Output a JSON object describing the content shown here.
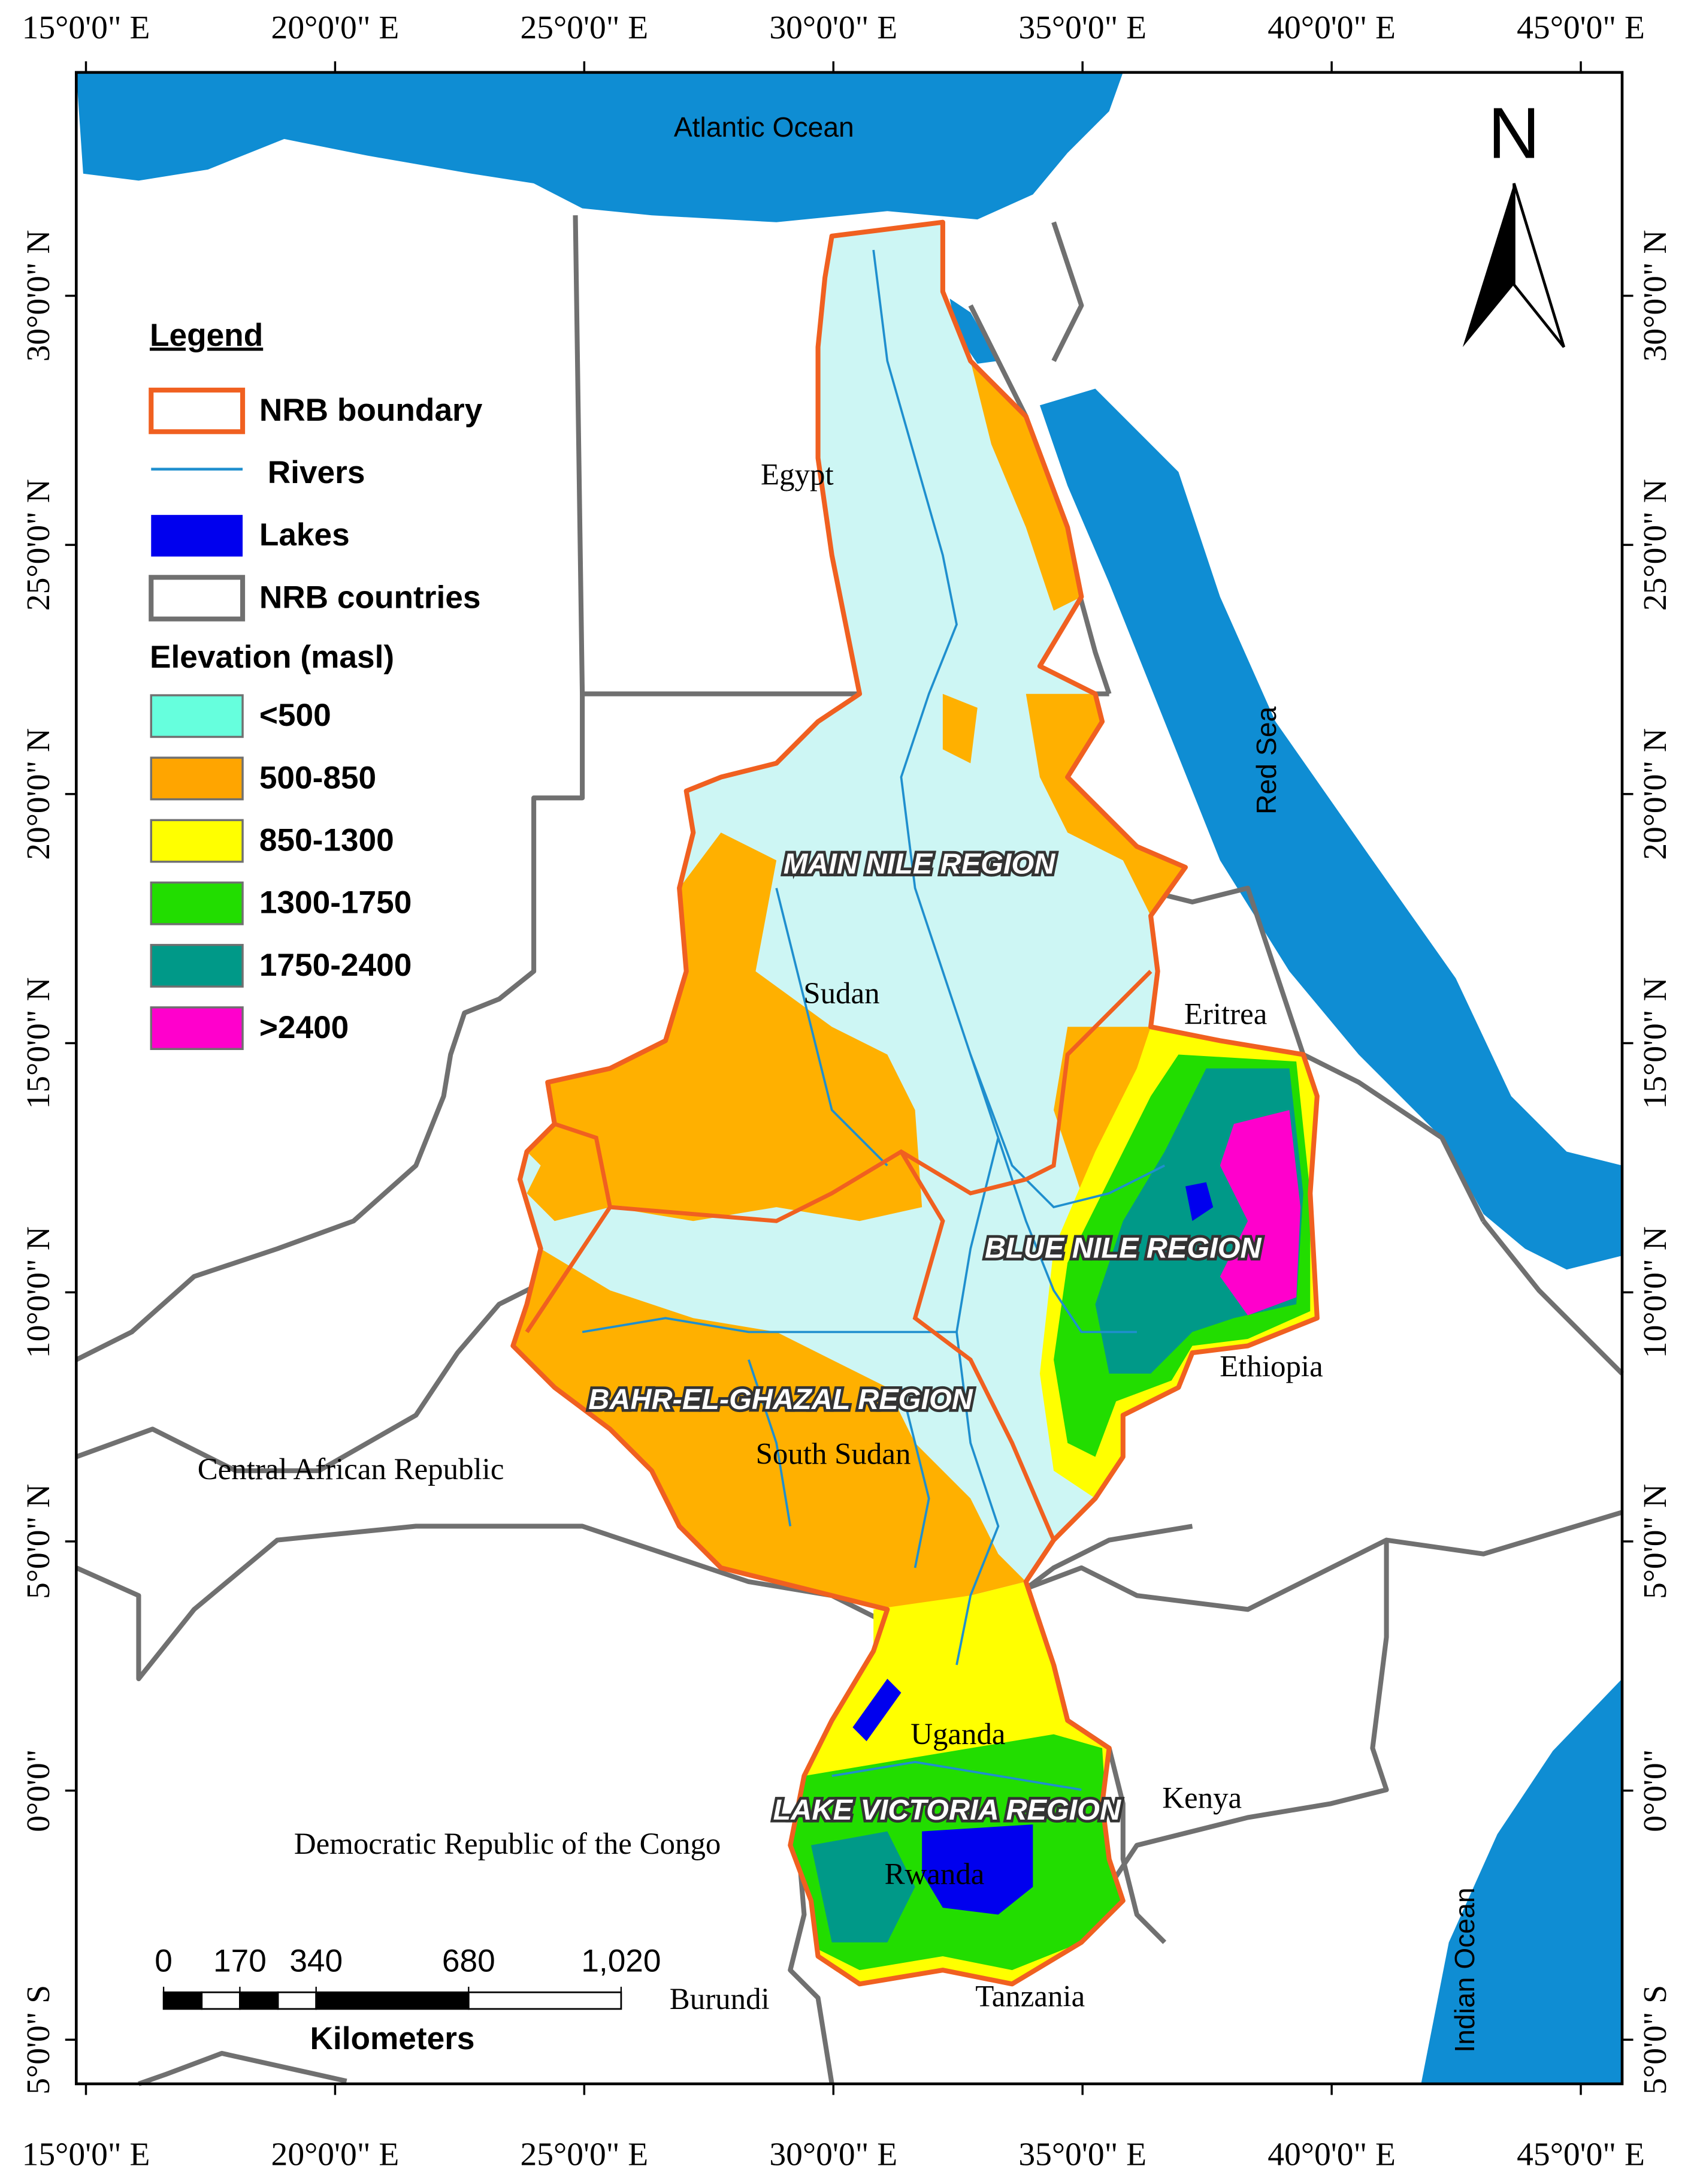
{
  "map": {
    "north_arrow": "N",
    "longitude_labels": [
      "15°0'0\" E",
      "20°0'0\" E",
      "25°0'0\" E",
      "30°0'0\" E",
      "35°0'0\" E",
      "40°0'0\" E",
      "45°0'0\" E"
    ],
    "latitude_labels": [
      "30°0'0\" N",
      "25°0'0\" N",
      "20°0'0\" N",
      "15°0'0\" N",
      "10°0'0\" N",
      "5°0'0\" N",
      "0°0'0\"",
      "5°0'0\" S"
    ],
    "water_labels": [
      "Atlantic Ocean",
      "Red Sea",
      "Indian Ocean"
    ],
    "country_labels": [
      "Egypt",
      "Sudan",
      "Eritrea",
      "Ethiopia",
      "South Sudan",
      "Central African Republic",
      "Uganda",
      "Kenya",
      "Democratic Republic of the Congo",
      "Rwanda",
      "Burundi",
      "Tanzania"
    ],
    "region_labels": [
      "MAIN NILE REGION",
      "BLUE NILE REGION",
      "BAHR-EL-GHAZAL REGION",
      "LAKE VICTORIA REGION"
    ]
  },
  "legend": {
    "title": "Legend",
    "items": [
      "NRB boundary",
      "Rivers",
      "Lakes",
      "NRB countries"
    ],
    "elevation_title": "Elevation (masl)",
    "elevation_classes": [
      {
        "label": "<500",
        "color": "#66ffdd"
      },
      {
        "label": "500-850",
        "color": "#ffa500"
      },
      {
        "label": "850-1300",
        "color": "#ffff00"
      },
      {
        "label": "1300-1750",
        "color": "#22dd00"
      },
      {
        "label": "1750-2400",
        "color": "#009988"
      },
      {
        "label": ">2400",
        "color": "#ff00cc"
      }
    ]
  },
  "scale_bar": {
    "ticks": [
      0,
      170,
      340,
      680,
      {
        "value": 1020,
        "label": "1,020"
      }
    ],
    "unit": "Kilometers"
  }
}
